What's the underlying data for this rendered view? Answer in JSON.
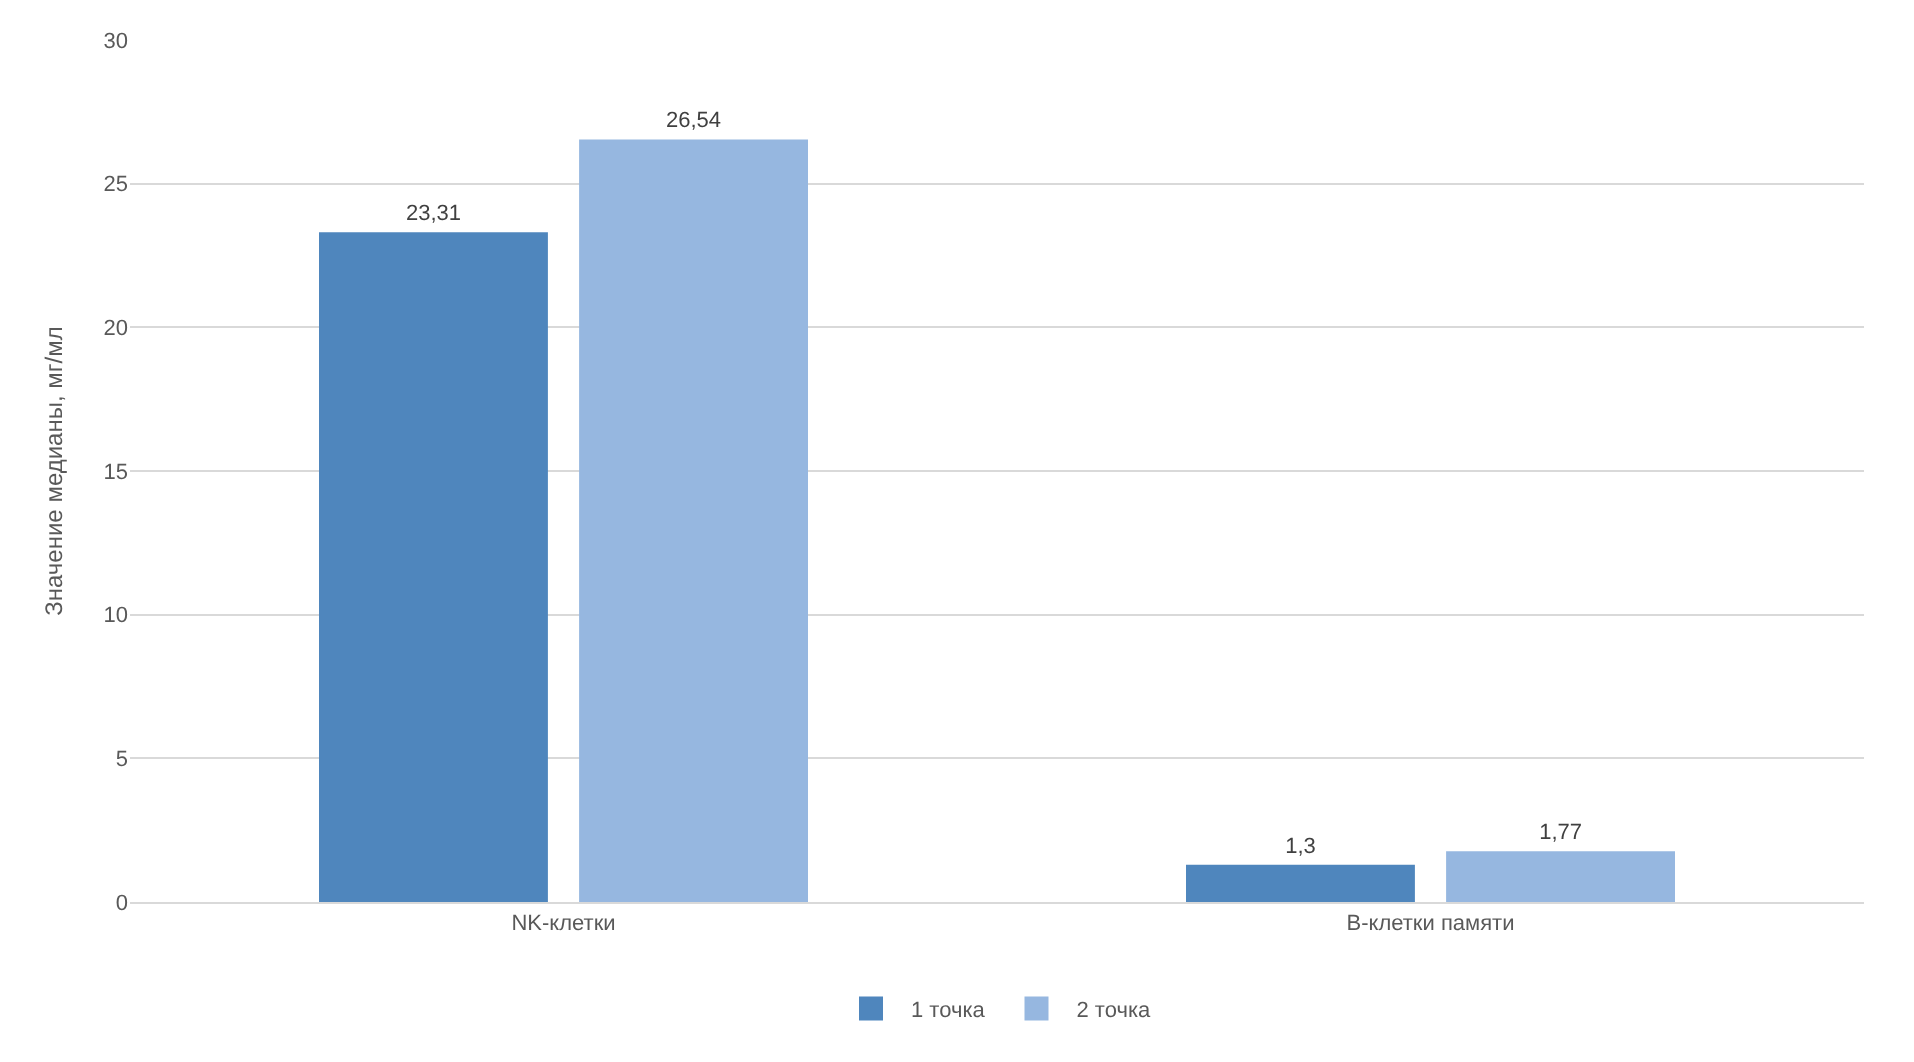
{
  "chart_data": {
    "type": "bar",
    "ylabel": "Значение медианы, мг/мл",
    "categories": [
      "NK-клетки",
      "B-клетки памяти"
    ],
    "series": [
      {
        "name": "1 точка",
        "color": "#4f86bd",
        "values": [
          23.31,
          1.3
        ],
        "value_labels": [
          "23,31",
          "1,3"
        ]
      },
      {
        "name": "2 точка",
        "color": "#96b7e0",
        "values": [
          26.54,
          1.77
        ],
        "value_labels": [
          "26,54",
          "1,77"
        ]
      }
    ],
    "ylim": [
      0,
      30
    ],
    "yticks": [
      0,
      5,
      10,
      15,
      20,
      25,
      30
    ],
    "grid": "y",
    "legend": "bottom"
  }
}
